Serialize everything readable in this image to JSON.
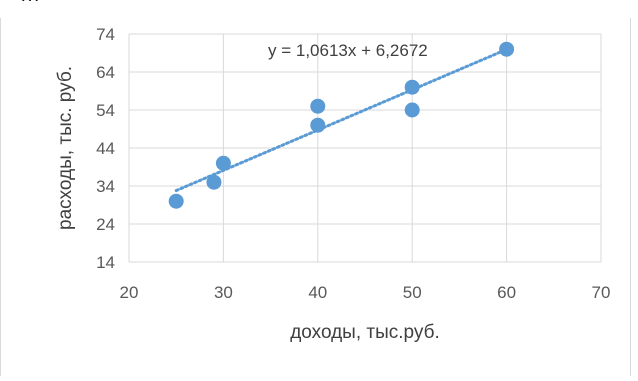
{
  "header_fragment": "…",
  "chart_data": {
    "type": "scatter",
    "xlabel": "доходы, тыс.руб.",
    "ylabel": "расходы, тыс. руб.",
    "xlim": [
      20,
      70
    ],
    "ylim": [
      14,
      74
    ],
    "xticks": [
      20,
      30,
      40,
      50,
      60,
      70
    ],
    "yticks": [
      14,
      24,
      34,
      44,
      54,
      64,
      74
    ],
    "grid": true,
    "series": [
      {
        "color": "#5b9bd5",
        "points": [
          {
            "x": 25,
            "y": 30
          },
          {
            "x": 29,
            "y": 35
          },
          {
            "x": 30,
            "y": 40
          },
          {
            "x": 40,
            "y": 50
          },
          {
            "x": 40,
            "y": 55
          },
          {
            "x": 50,
            "y": 54
          },
          {
            "x": 50,
            "y": 60
          },
          {
            "x": 60,
            "y": 70
          }
        ]
      }
    ],
    "trendline": {
      "slope": 1.0613,
      "intercept": 6.2672,
      "x_range": [
        25,
        60
      ],
      "style": "dotted",
      "color": "#5b9bd5",
      "equation_label": "y = 1,0613x + 6,2672"
    }
  }
}
